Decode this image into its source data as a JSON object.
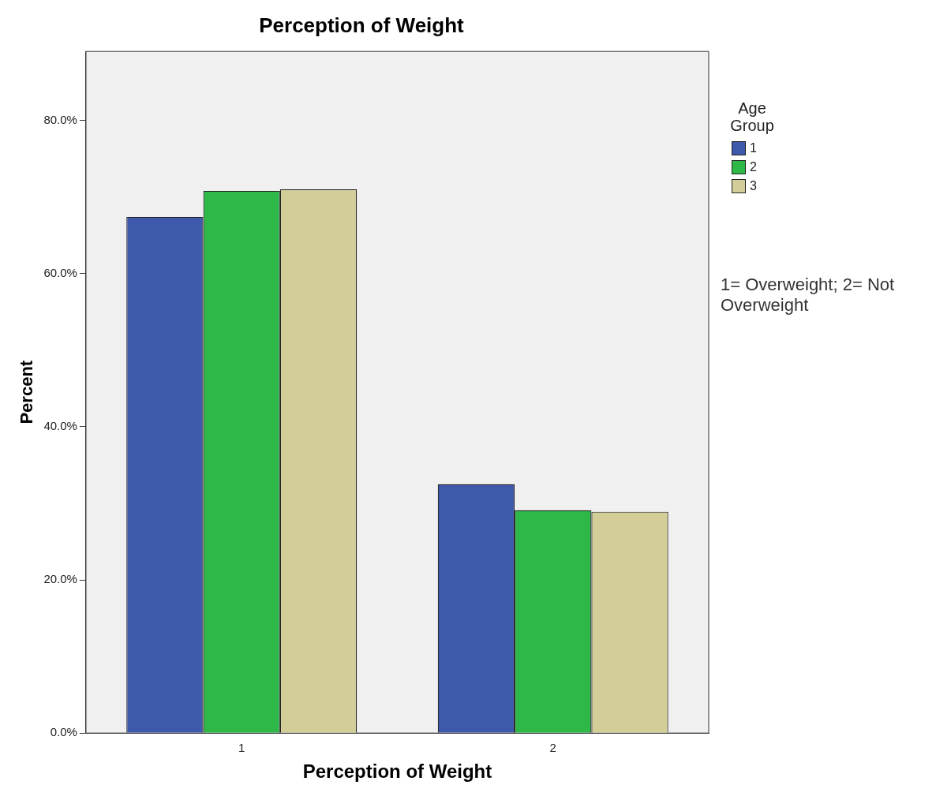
{
  "chart_data": {
    "type": "bar",
    "title": "Perception of Weight",
    "xlabel": "Perception of Weight",
    "ylabel": "Percent",
    "legend_title": "Age Group",
    "annotations": [
      "1= Overweight; 2= Not Overweight"
    ],
    "categories": [
      "1",
      "2"
    ],
    "series": [
      {
        "name": "1",
        "color": "#3e58ac",
        "values": [
          67.4,
          32.5
        ]
      },
      {
        "name": "2",
        "color": "#2eb848",
        "values": [
          70.8,
          29.1
        ]
      },
      {
        "name": "3",
        "color": "#d3ce97",
        "values": [
          71.0,
          28.9
        ]
      }
    ],
    "ylim": [
      0,
      89
    ],
    "yticks": [
      {
        "value": 0,
        "label": "0.0%"
      },
      {
        "value": 20,
        "label": "20.0%"
      },
      {
        "value": 40,
        "label": "40.0%"
      },
      {
        "value": 60,
        "label": "60.0%"
      },
      {
        "value": 80,
        "label": "80.0%"
      }
    ],
    "grid": false,
    "legend": "top right"
  }
}
